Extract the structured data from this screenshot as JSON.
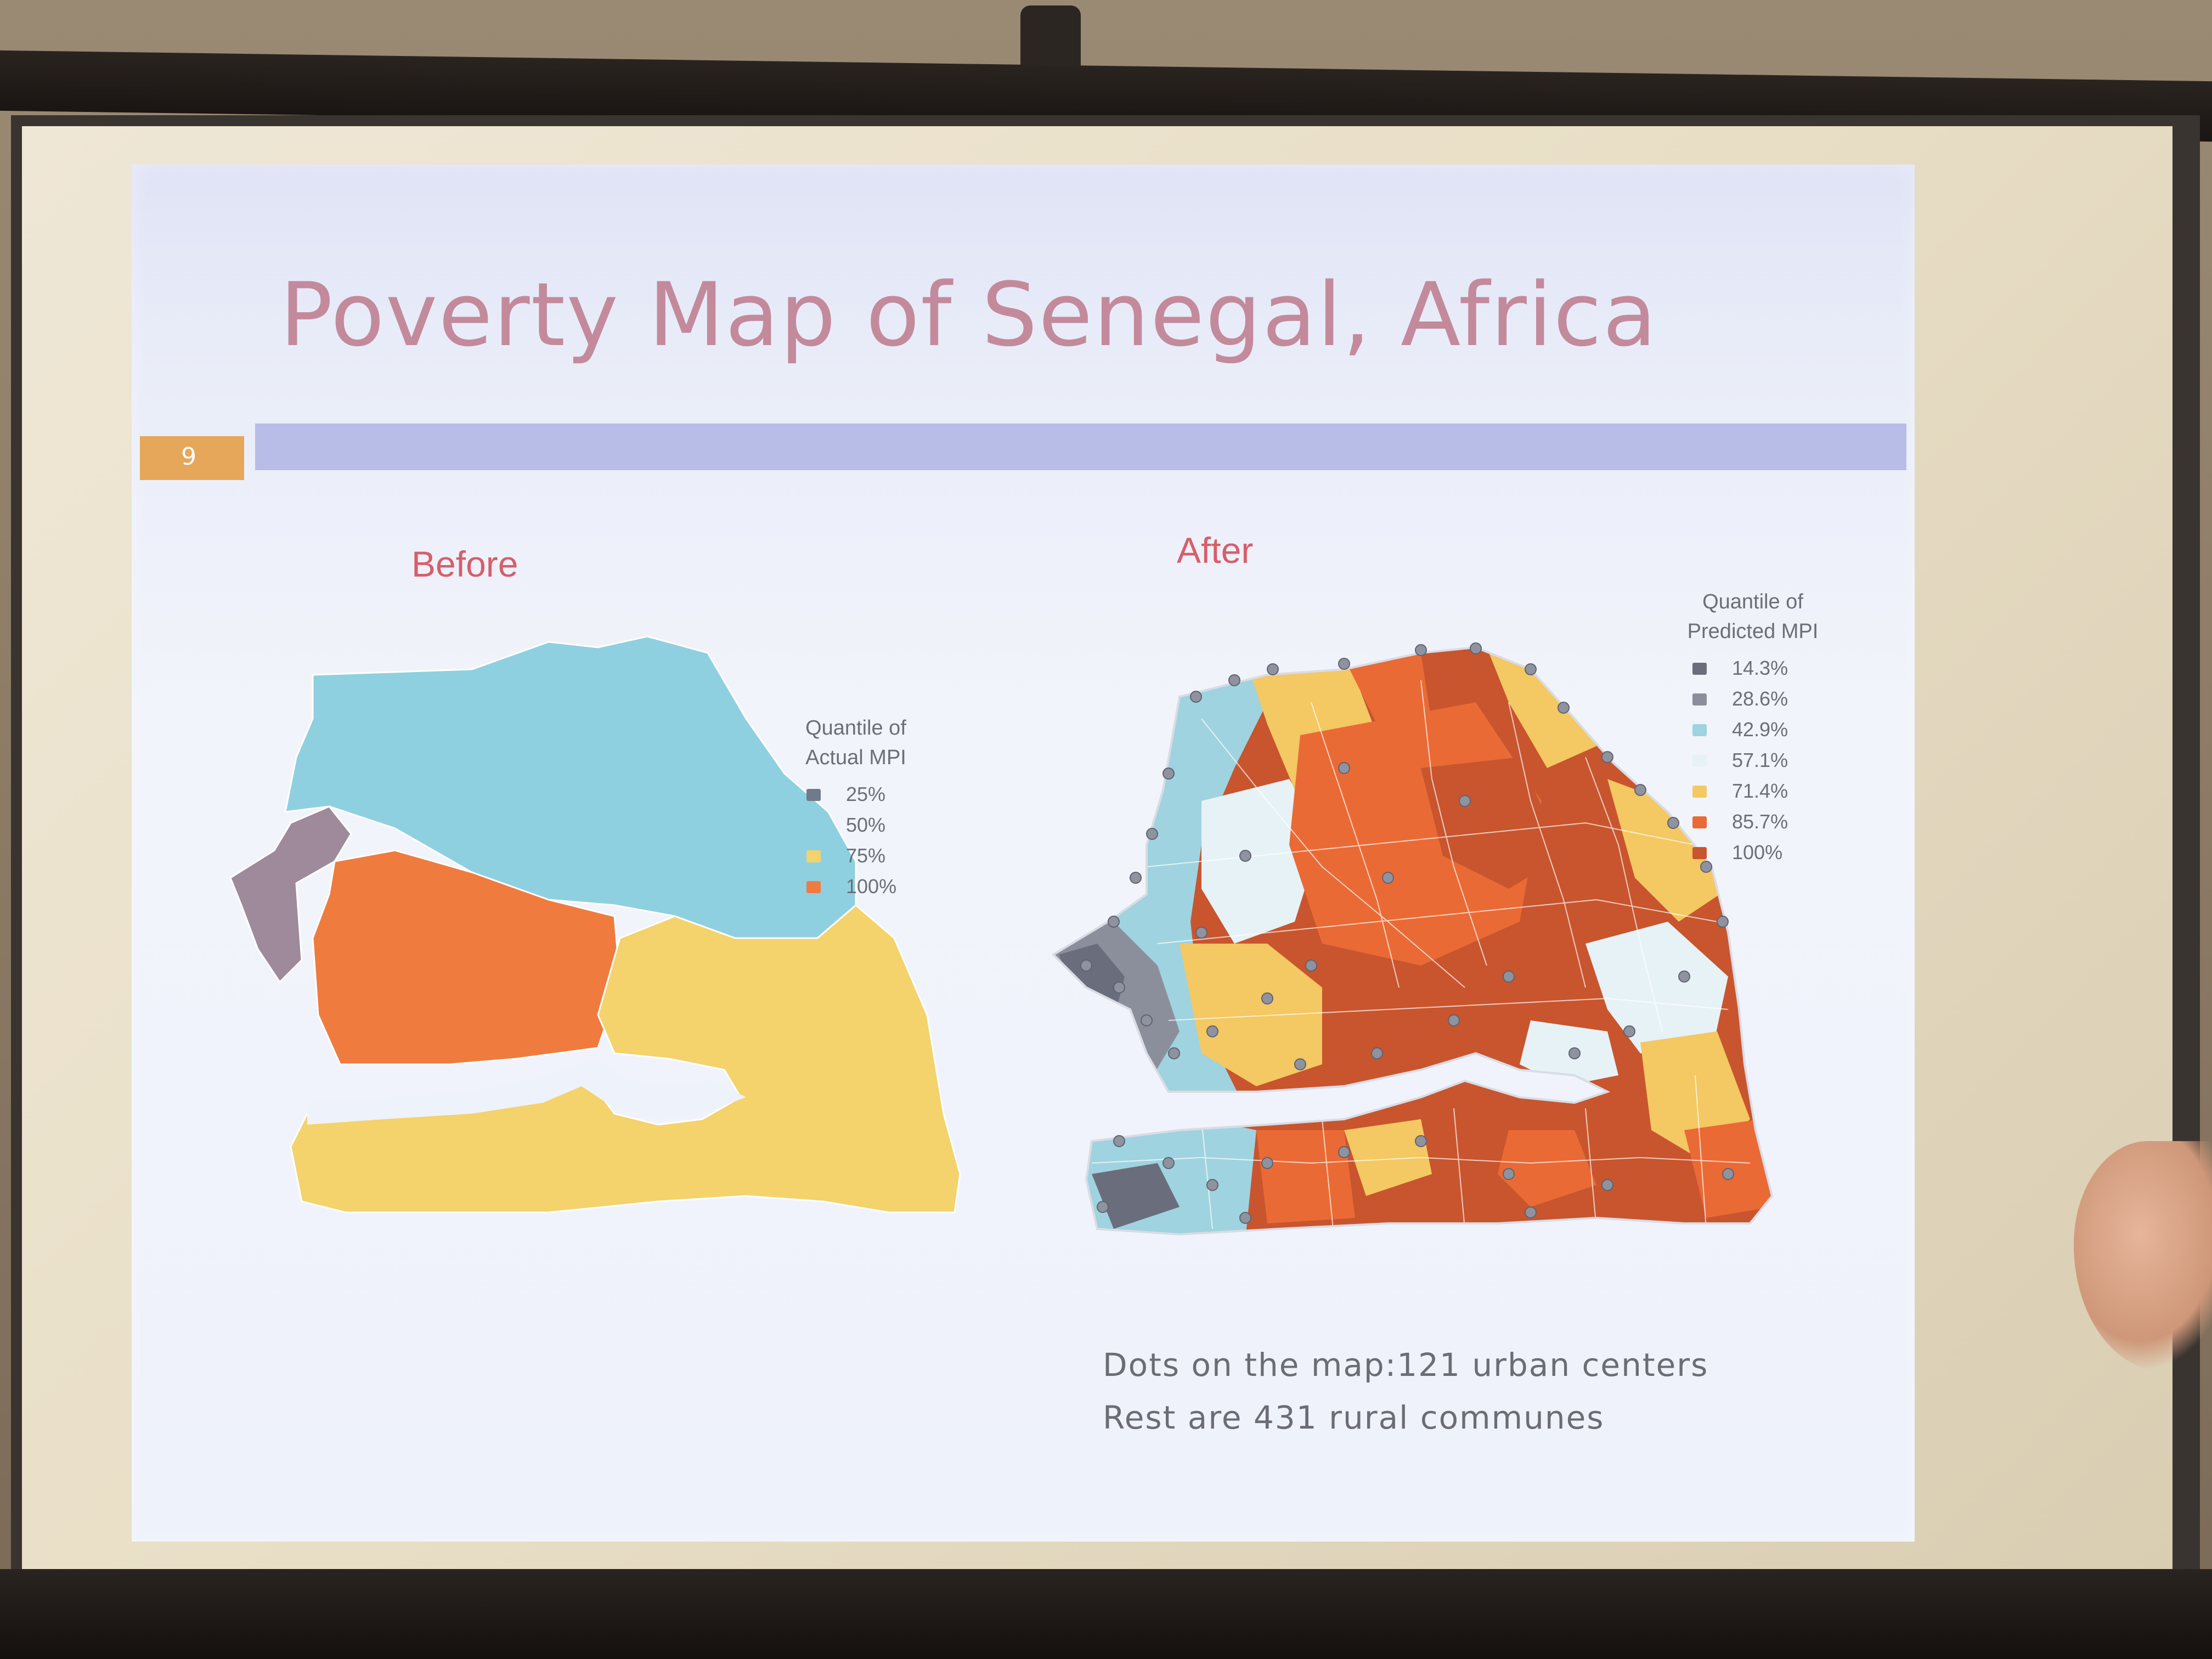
{
  "slide": {
    "title": "Poverty Map of Senegal, Africa",
    "slide_number": "9",
    "before_label": "Before",
    "after_label": "After",
    "before_legend": {
      "title_line1": "Quantile of",
      "title_line2": "Actual MPI",
      "items": [
        {
          "label": "25%",
          "color": "#6f7a8a"
        },
        {
          "label": "50%",
          "color": "#8fd0e0"
        },
        {
          "label": "75%",
          "color": "#f4d26c"
        },
        {
          "label": "100%",
          "color": "#f07b3f"
        }
      ]
    },
    "after_legend": {
      "title_line1": "Quantile of",
      "title_line2": "Predicted MPI",
      "items": [
        {
          "label": "14.3%",
          "color": "#6a6e7c"
        },
        {
          "label": "28.6%",
          "color": "#8b8f9c"
        },
        {
          "label": "42.9%",
          "color": "#9fd3df"
        },
        {
          "label": "57.1%",
          "color": "#e7f2f6"
        },
        {
          "label": "71.4%",
          "color": "#f4c862"
        },
        {
          "label": "85.7%",
          "color": "#ea6a35"
        },
        {
          "label": "100%",
          "color": "#c8552e"
        }
      ]
    },
    "caption_line1": "Dots on the map:121 urban centers",
    "caption_line2": "Rest are 431 rural communes"
  }
}
